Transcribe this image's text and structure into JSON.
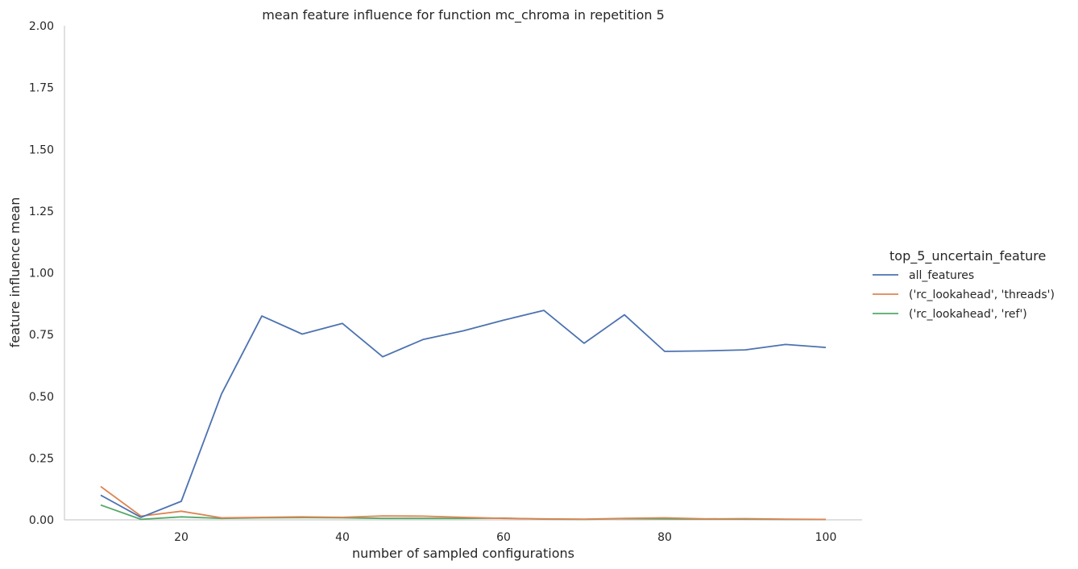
{
  "chart_data": {
    "type": "line",
    "title": "mean feature influence for function mc_chroma in repetition 5",
    "xlabel": "number of sampled configurations",
    "ylabel": "feature influence mean",
    "xlim": [
      5.5,
      104.5
    ],
    "ylim": [
      0,
      2
    ],
    "xticks": [
      "20",
      "40",
      "60",
      "80",
      "100"
    ],
    "yticks": [
      "0.00",
      "0.25",
      "0.50",
      "0.75",
      "1.00",
      "1.25",
      "1.50",
      "1.75",
      "2.00"
    ],
    "grid": false,
    "legend": {
      "title": "top_5_uncertain_feature",
      "placement": "right"
    },
    "x": [
      10,
      15,
      20,
      25,
      30,
      35,
      40,
      45,
      50,
      55,
      60,
      65,
      70,
      75,
      80,
      85,
      90,
      95,
      100
    ],
    "series": [
      {
        "name": "all_features",
        "color": "#4c72b0",
        "values": [
          0.1,
          0.01,
          0.075,
          0.51,
          0.825,
          0.752,
          0.795,
          0.66,
          0.73,
          0.765,
          0.808,
          0.848,
          0.715,
          0.83,
          0.682,
          0.684,
          0.688,
          0.71,
          0.698
        ]
      },
      {
        "name": "('rc_lookahead', 'threads')",
        "color": "#dd8452",
        "values": [
          0.135,
          0.015,
          0.035,
          0.008,
          0.01,
          0.012,
          0.01,
          0.016,
          0.015,
          0.01,
          0.006,
          0.004,
          0.003,
          0.006,
          0.008,
          0.004,
          0.005,
          0.003,
          0.002
        ]
      },
      {
        "name": "('rc_lookahead', 'ref')",
        "color": "#55a868",
        "values": [
          0.06,
          0.002,
          0.012,
          0.006,
          0.008,
          0.009,
          0.008,
          0.006,
          0.006,
          0.006,
          0.007,
          0.003,
          0.002,
          0.005,
          0.004,
          0.003,
          0.003,
          0.002,
          0.002
        ]
      }
    ]
  }
}
